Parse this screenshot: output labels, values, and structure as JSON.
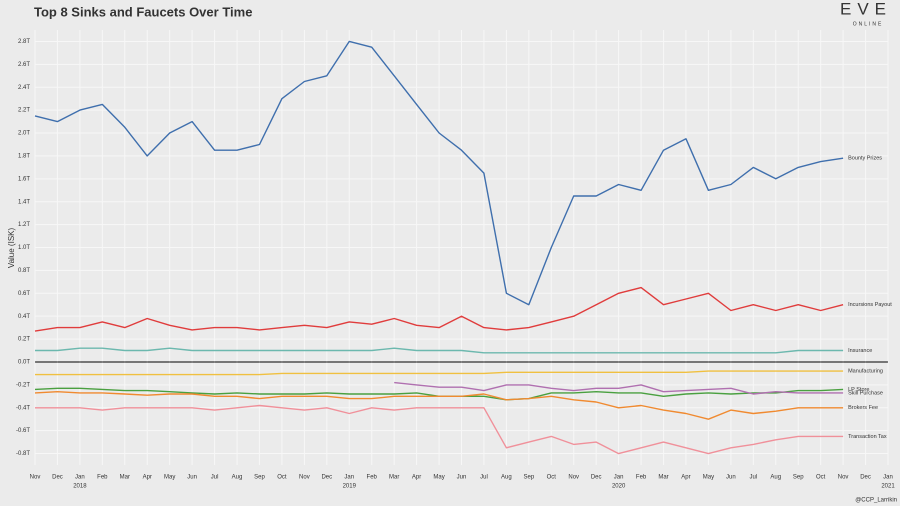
{
  "chart_data": {
    "type": "line",
    "title": "Top 8 Sinks and Faucets Over Time",
    "y_label": "Value (ISK)",
    "logo": "EVE",
    "logo_sub": "ONLINE",
    "credit": "@CCP_Larrikin",
    "grid": true,
    "x": [
      "2017-11",
      "2017-12",
      "2018-01",
      "2018-02",
      "2018-03",
      "2018-04",
      "2018-05",
      "2018-06",
      "2018-07",
      "2018-08",
      "2018-09",
      "2018-10",
      "2018-11",
      "2018-12",
      "2019-01",
      "2019-02",
      "2019-03",
      "2019-04",
      "2019-05",
      "2019-06",
      "2019-07",
      "2019-08",
      "2019-09",
      "2019-10",
      "2019-11",
      "2019-12",
      "2020-01",
      "2020-02",
      "2020-03",
      "2020-04",
      "2020-05",
      "2020-06",
      "2020-07",
      "2020-08",
      "2020-09",
      "2020-10",
      "2020-11"
    ],
    "xlim": [
      "2017-11",
      "2021-01"
    ],
    "xticks": [
      {
        "value": "2017-11",
        "label": "Nov"
      },
      {
        "value": "2017-12",
        "label": "Dec"
      },
      {
        "value": "2018-01",
        "label": "Jan",
        "year": "2018"
      },
      {
        "value": "2018-02",
        "label": "Feb"
      },
      {
        "value": "2018-03",
        "label": "Mar"
      },
      {
        "value": "2018-04",
        "label": "Apr"
      },
      {
        "value": "2018-05",
        "label": "May"
      },
      {
        "value": "2018-06",
        "label": "Jun"
      },
      {
        "value": "2018-07",
        "label": "Jul"
      },
      {
        "value": "2018-08",
        "label": "Aug"
      },
      {
        "value": "2018-09",
        "label": "Sep"
      },
      {
        "value": "2018-10",
        "label": "Oct"
      },
      {
        "value": "2018-11",
        "label": "Nov"
      },
      {
        "value": "2018-12",
        "label": "Dec"
      },
      {
        "value": "2019-01",
        "label": "Jan",
        "year": "2019"
      },
      {
        "value": "2019-02",
        "label": "Feb"
      },
      {
        "value": "2019-03",
        "label": "Mar"
      },
      {
        "value": "2019-04",
        "label": "Apr"
      },
      {
        "value": "2019-05",
        "label": "May"
      },
      {
        "value": "2019-06",
        "label": "Jun"
      },
      {
        "value": "2019-07",
        "label": "Jul"
      },
      {
        "value": "2019-08",
        "label": "Aug"
      },
      {
        "value": "2019-09",
        "label": "Sep"
      },
      {
        "value": "2019-10",
        "label": "Oct"
      },
      {
        "value": "2019-11",
        "label": "Nov"
      },
      {
        "value": "2019-12",
        "label": "Dec"
      },
      {
        "value": "2020-01",
        "label": "Jan",
        "year": "2020"
      },
      {
        "value": "2020-02",
        "label": "Feb"
      },
      {
        "value": "2020-03",
        "label": "Mar"
      },
      {
        "value": "2020-04",
        "label": "Apr"
      },
      {
        "value": "2020-05",
        "label": "May"
      },
      {
        "value": "2020-06",
        "label": "Jun"
      },
      {
        "value": "2020-07",
        "label": "Jul"
      },
      {
        "value": "2020-08",
        "label": "Aug"
      },
      {
        "value": "2020-09",
        "label": "Sep"
      },
      {
        "value": "2020-10",
        "label": "Oct"
      },
      {
        "value": "2020-11",
        "label": "Nov"
      },
      {
        "value": "2020-12",
        "label": "Dec"
      },
      {
        "value": "2021-01",
        "label": "Jan",
        "year": "2021"
      }
    ],
    "ylim": [
      -900000000000.0,
      2900000000000.0
    ],
    "yticks": [
      {
        "value": 2800000000000.0,
        "label": "2.8T"
      },
      {
        "value": 2600000000000.0,
        "label": "2.6T"
      },
      {
        "value": 2400000000000.0,
        "label": "2.4T"
      },
      {
        "value": 2200000000000.0,
        "label": "2.2T"
      },
      {
        "value": 2000000000000.0,
        "label": "2.0T"
      },
      {
        "value": 1800000000000.0,
        "label": "1.8T"
      },
      {
        "value": 1600000000000.0,
        "label": "1.6T"
      },
      {
        "value": 1400000000000.0,
        "label": "1.4T"
      },
      {
        "value": 1200000000000.0,
        "label": "1.2T"
      },
      {
        "value": 1000000000000.0,
        "label": "1.0T"
      },
      {
        "value": 800000000000.0,
        "label": "0.8T"
      },
      {
        "value": 600000000000.0,
        "label": "0.6T"
      },
      {
        "value": 400000000000.0,
        "label": "0.4T"
      },
      {
        "value": 200000000000.0,
        "label": "0.2T"
      },
      {
        "value": 0,
        "label": "0.0T"
      },
      {
        "value": -200000000000.0,
        "label": "-0.2T"
      },
      {
        "value": -400000000000.0,
        "label": "-0.4T"
      },
      {
        "value": -600000000000.0,
        "label": "-0.6T"
      },
      {
        "value": -800000000000.0,
        "label": "-0.8T"
      }
    ],
    "series": [
      {
        "name": "Bounty Prizes",
        "color": "#3f6fad",
        "values": [
          2150000000000.0,
          2100000000000.0,
          2200000000000.0,
          2250000000000.0,
          2050000000000.0,
          1800000000000.0,
          2000000000000.0,
          2100000000000.0,
          1850000000000.0,
          1850000000000.0,
          1900000000000.0,
          2300000000000.0,
          2450000000000.0,
          2500000000000.0,
          2800000000000.0,
          2750000000000.0,
          2500000000000.0,
          2250000000000.0,
          2000000000000.0,
          1850000000000.0,
          1650000000000.0,
          600000000000.0,
          500000000000.0,
          1000000000000.0,
          1450000000000.0,
          1450000000000.0,
          1550000000000.0,
          1500000000000.0,
          1850000000000.0,
          1950000000000.0,
          1500000000000.0,
          1550000000000.0,
          1700000000000.0,
          1600000000000.0,
          1700000000000.0,
          1750000000000.0,
          1780000000000.0
        ]
      },
      {
        "name": "Incursions Payout",
        "color": "#e03c3c",
        "values": [
          270000000000.0,
          300000000000.0,
          300000000000.0,
          350000000000.0,
          300000000000.0,
          380000000000.0,
          320000000000.0,
          280000000000.0,
          300000000000.0,
          300000000000.0,
          280000000000.0,
          300000000000.0,
          320000000000.0,
          300000000000.0,
          350000000000.0,
          330000000000.0,
          380000000000.0,
          320000000000.0,
          300000000000.0,
          400000000000.0,
          300000000000.0,
          280000000000.0,
          300000000000.0,
          350000000000.0,
          400000000000.0,
          500000000000.0,
          600000000000.0,
          650000000000.0,
          500000000000.0,
          550000000000.0,
          600000000000.0,
          450000000000.0,
          500000000000.0,
          450000000000.0,
          500000000000.0,
          450000000000.0,
          500000000000.0
        ]
      },
      {
        "name": "Insurance",
        "color": "#6cb8ae",
        "values": [
          100000000000.0,
          100000000000.0,
          120000000000.0,
          120000000000.0,
          100000000000.0,
          100000000000.0,
          120000000000.0,
          100000000000.0,
          100000000000.0,
          100000000000.0,
          100000000000.0,
          100000000000.0,
          100000000000.0,
          100000000000.0,
          100000000000.0,
          100000000000.0,
          120000000000.0,
          100000000000.0,
          100000000000.0,
          100000000000.0,
          80000000000.0,
          80000000000.0,
          80000000000.0,
          80000000000.0,
          80000000000.0,
          80000000000.0,
          80000000000.0,
          80000000000.0,
          80000000000.0,
          80000000000.0,
          80000000000.0,
          80000000000.0,
          80000000000.0,
          80000000000.0,
          100000000000.0,
          100000000000.0,
          100000000000.0
        ]
      },
      {
        "name": "Manufacturing",
        "color": "#f0c040",
        "values": [
          -110000000000.0,
          -110000000000.0,
          -110000000000.0,
          -110000000000.0,
          -110000000000.0,
          -110000000000.0,
          -110000000000.0,
          -110000000000.0,
          -110000000000.0,
          -110000000000.0,
          -110000000000.0,
          -100000000000.0,
          -100000000000.0,
          -100000000000.0,
          -100000000000.0,
          -100000000000.0,
          -100000000000.0,
          -100000000000.0,
          -100000000000.0,
          -100000000000.0,
          -100000000000.0,
          -90000000000.0,
          -90000000000.0,
          -90000000000.0,
          -90000000000.0,
          -90000000000.0,
          -90000000000.0,
          -90000000000.0,
          -90000000000.0,
          -90000000000.0,
          -80000000000.0,
          -80000000000.0,
          -80000000000.0,
          -80000000000.0,
          -80000000000.0,
          -80000000000.0,
          -80000000000.0
        ]
      },
      {
        "name": "LP Store",
        "color": "#4aa040",
        "values": [
          -240000000000.0,
          -230000000000.0,
          -230000000000.0,
          -240000000000.0,
          -250000000000.0,
          -250000000000.0,
          -260000000000.0,
          -270000000000.0,
          -280000000000.0,
          -270000000000.0,
          -280000000000.0,
          -280000000000.0,
          -280000000000.0,
          -270000000000.0,
          -280000000000.0,
          -280000000000.0,
          -280000000000.0,
          -270000000000.0,
          -300000000000.0,
          -300000000000.0,
          -300000000000.0,
          -330000000000.0,
          -320000000000.0,
          -270000000000.0,
          -270000000000.0,
          -260000000000.0,
          -270000000000.0,
          -270000000000.0,
          -300000000000.0,
          -280000000000.0,
          -270000000000.0,
          -280000000000.0,
          -270000000000.0,
          -270000000000.0,
          -250000000000.0,
          -250000000000.0,
          -240000000000.0
        ]
      },
      {
        "name": "Skill Purchase",
        "color": "#b070b0",
        "values": [
          null,
          null,
          null,
          null,
          null,
          null,
          null,
          null,
          null,
          null,
          null,
          null,
          null,
          null,
          null,
          null,
          -180000000000.0,
          -200000000000.0,
          -220000000000.0,
          -220000000000.0,
          -250000000000.0,
          -200000000000.0,
          -200000000000.0,
          -230000000000.0,
          -250000000000.0,
          -230000000000.0,
          -230000000000.0,
          -200000000000.0,
          -260000000000.0,
          -250000000000.0,
          -240000000000.0,
          -230000000000.0,
          -280000000000.0,
          -260000000000.0,
          -270000000000.0,
          -270000000000.0,
          -270000000000.0
        ]
      },
      {
        "name": "Brokers Fee",
        "color": "#f08a30",
        "values": [
          -270000000000.0,
          -260000000000.0,
          -270000000000.0,
          -270000000000.0,
          -280000000000.0,
          -290000000000.0,
          -280000000000.0,
          -280000000000.0,
          -300000000000.0,
          -300000000000.0,
          -320000000000.0,
          -300000000000.0,
          -300000000000.0,
          -300000000000.0,
          -320000000000.0,
          -320000000000.0,
          -300000000000.0,
          -300000000000.0,
          -300000000000.0,
          -300000000000.0,
          -280000000000.0,
          -330000000000.0,
          -320000000000.0,
          -300000000000.0,
          -330000000000.0,
          -350000000000.0,
          -400000000000.0,
          -380000000000.0,
          -420000000000.0,
          -450000000000.0,
          -500000000000.0,
          -420000000000.0,
          -450000000000.0,
          -430000000000.0,
          -400000000000.0,
          -400000000000.0,
          -400000000000.0
        ]
      },
      {
        "name": "Transaction Tax",
        "color": "#f0909a",
        "values": [
          -400000000000.0,
          -400000000000.0,
          -400000000000.0,
          -420000000000.0,
          -400000000000.0,
          -400000000000.0,
          -400000000000.0,
          -400000000000.0,
          -420000000000.0,
          -400000000000.0,
          -380000000000.0,
          -400000000000.0,
          -420000000000.0,
          -400000000000.0,
          -450000000000.0,
          -400000000000.0,
          -420000000000.0,
          -400000000000.0,
          -400000000000.0,
          -400000000000.0,
          -400000000000.0,
          -750000000000.0,
          -700000000000.0,
          -650000000000.0,
          -720000000000.0,
          -700000000000.0,
          -800000000000.0,
          -750000000000.0,
          -700000000000.0,
          -750000000000.0,
          -800000000000.0,
          -750000000000.0,
          -720000000000.0,
          -680000000000.0,
          -650000000000.0,
          -650000000000.0,
          -650000000000.0
        ]
      }
    ]
  }
}
